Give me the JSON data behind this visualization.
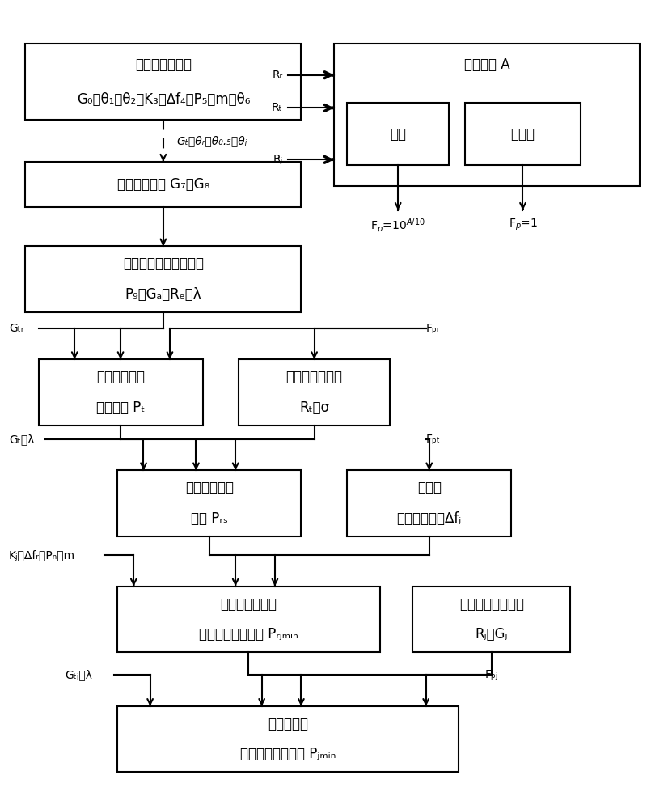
{
  "bg": "#ffffff",
  "lc": "#000000",
  "lw": 1.5,
  "fs": 12,
  "fs2": 10,
  "boxes": {
    "b1": [
      0.03,
      0.855,
      0.42,
      0.11
    ],
    "b2": [
      0.03,
      0.73,
      0.42,
      0.065
    ],
    "b3": [
      0.03,
      0.578,
      0.42,
      0.095
    ],
    "b4": [
      0.05,
      0.415,
      0.25,
      0.095
    ],
    "b4r": [
      0.355,
      0.415,
      0.23,
      0.095
    ],
    "b5": [
      0.17,
      0.255,
      0.28,
      0.095
    ],
    "b5r": [
      0.52,
      0.255,
      0.25,
      0.095
    ],
    "b6": [
      0.17,
      0.088,
      0.4,
      0.095
    ],
    "b6r": [
      0.62,
      0.088,
      0.24,
      0.095
    ],
    "b7": [
      0.17,
      -0.085,
      0.52,
      0.095
    ],
    "bp": [
      0.5,
      0.76,
      0.465,
      0.205
    ],
    "bc": [
      0.52,
      0.79,
      0.155,
      0.09
    ],
    "bn": [
      0.7,
      0.79,
      0.175,
      0.09
    ]
  },
  "box_lines": {
    "b1": [
      "初始化雷达参数",
      "G₀、θ₁、θ₂、K₃、Δf₄、P₅、m、θ₆"
    ],
    "b2": [
      "计算天线增益 G₇、G₈"
    ],
    "b3": [
      "初始化侦察机处理参数",
      "P₉、Gₐ、Rₑ、λ"
    ],
    "b4": [
      "计算雷达信号",
      "发射功率 Pₜ"
    ],
    "b4r": [
      "初始化目标参数",
      "Rₜ、σ"
    ],
    "b5": [
      "计算目标回波",
      "功率 Pᵣₛ"
    ],
    "b5r": [
      "初始化",
      "干扰信号带宽Δfⱼ"
    ],
    "b6": [
      "计算雷达接收机",
      "有效干扰功率范围 Pᵣⱼₘᵢₙ"
    ],
    "b6r": [
      "初始化干扰机参数",
      "Rⱼ、Gⱼ"
    ],
    "b7": [
      "计算干扰机",
      "有效干扰功率范围 Pⱼₘᵢₙ"
    ],
    "bp": [
      "路径损耗 A"
    ],
    "bc": [
      "考虑"
    ],
    "bn": [
      "不考虑"
    ]
  }
}
